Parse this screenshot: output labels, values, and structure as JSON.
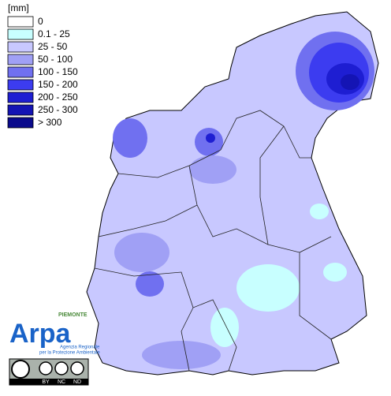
{
  "legend": {
    "unit": "[mm]",
    "items": [
      {
        "label": "0",
        "color": "#ffffff"
      },
      {
        "label": "0.1 - 25",
        "color": "#c8ffff"
      },
      {
        "label": "25 - 50",
        "color": "#c8c8ff"
      },
      {
        "label": "50 - 100",
        "color": "#a0a0f5"
      },
      {
        "label": "100 - 150",
        "color": "#7070f0"
      },
      {
        "label": "150 - 200",
        "color": "#3c3cf0"
      },
      {
        "label": "200 - 250",
        "color": "#1e1ed2"
      },
      {
        "label": "250 - 300",
        "color": "#1414b4"
      },
      {
        "label": "> 300",
        "color": "#0a0a8c"
      }
    ]
  },
  "logo": {
    "region": "PIEMONTE",
    "name": "Arpa",
    "agency": [
      "Agenzia Regionale",
      "per la Protezione Ambientale"
    ]
  },
  "license": {
    "terms": [
      "BY",
      "NC",
      "ND"
    ]
  }
}
